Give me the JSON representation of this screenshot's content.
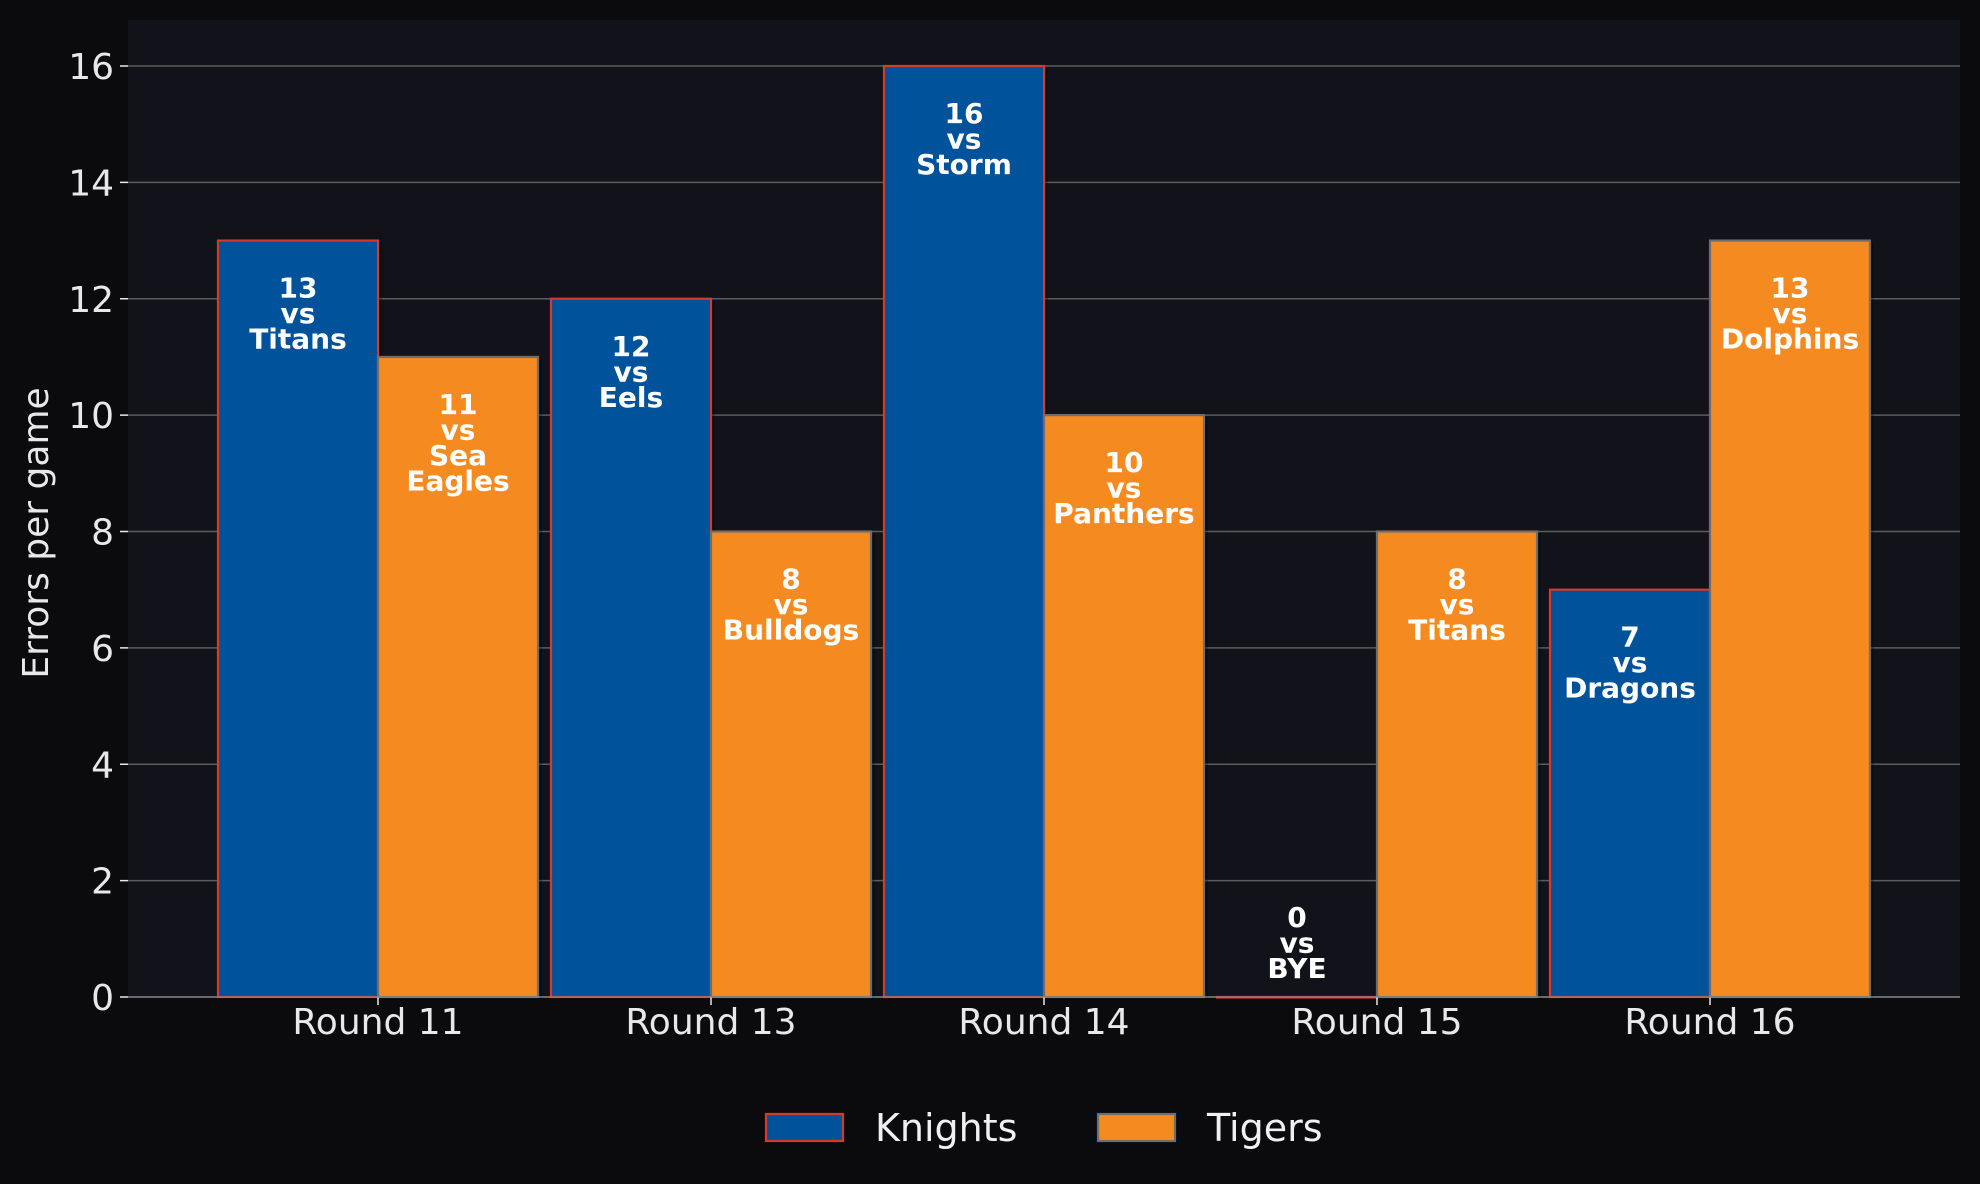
{
  "chart_data": {
    "type": "bar",
    "categories": [
      "Round 11",
      "Round 13",
      "Round 14",
      "Round 15",
      "Round 16"
    ],
    "ylabel": "Errors per game",
    "xlabel": "",
    "ylim": [
      0,
      16.8
    ],
    "yticks": [
      0,
      2,
      4,
      6,
      8,
      10,
      12,
      14,
      16
    ],
    "grid": "horizontal",
    "legend_position": "bottom-center",
    "series": [
      {
        "name": "Knights",
        "color": "#00529b",
        "edge_color": "#d63a2a",
        "values": [
          13,
          12,
          16,
          0,
          7
        ],
        "opponents": [
          "Titans",
          "Eels",
          "Storm",
          "BYE",
          "Dragons"
        ]
      },
      {
        "name": "Tigers",
        "color": "#f58b20",
        "edge_color": "#6e6e6e",
        "values": [
          11,
          8,
          10,
          8,
          13
        ],
        "opponents": [
          "Sea Eagles",
          "Bulldogs",
          "Panthers",
          "Titans",
          "Dolphins"
        ]
      }
    ],
    "label_connector": "vs"
  },
  "colors": {
    "background": "#0b0b0e",
    "plot_background": "#12131a",
    "grid": "#5c5c5c",
    "text": "#e8e8e8"
  }
}
